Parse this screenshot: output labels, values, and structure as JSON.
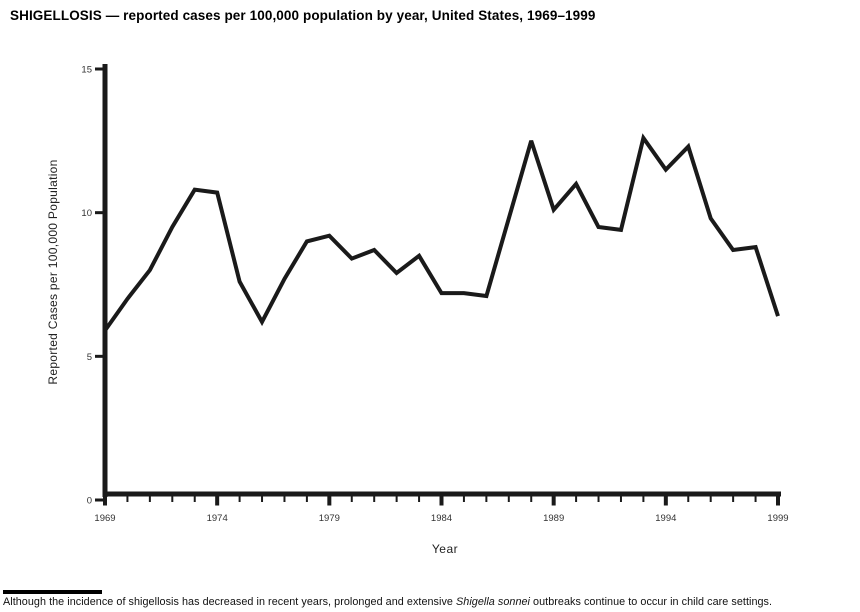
{
  "page": {
    "title": "SHIGELLOSIS — reported cases per 100,000 population by year, United States, 1969–1999"
  },
  "chart_data": {
    "type": "line",
    "title": "SHIGELLOSIS — reported cases per 100,000 population by year, United States, 1969–1999",
    "xlabel": "Year",
    "ylabel": "Reported Cases per 100,000 Population",
    "x": [
      1969,
      1970,
      1971,
      1972,
      1973,
      1974,
      1975,
      1976,
      1977,
      1978,
      1979,
      1980,
      1981,
      1982,
      1983,
      1984,
      1985,
      1986,
      1987,
      1988,
      1989,
      1990,
      1991,
      1992,
      1993,
      1994,
      1995,
      1996,
      1997,
      1998,
      1999
    ],
    "y": [
      5.9,
      7.0,
      8.0,
      9.5,
      10.8,
      10.7,
      7.6,
      6.2,
      7.7,
      9.0,
      9.2,
      8.4,
      8.7,
      7.9,
      8.5,
      7.2,
      7.2,
      7.1,
      9.8,
      12.5,
      10.1,
      11.0,
      9.5,
      9.4,
      12.6,
      11.5,
      12.3,
      9.8,
      8.7,
      8.8,
      6.4
    ],
    "ylim": [
      0,
      15
    ],
    "yticks": [
      0,
      5,
      10,
      15
    ],
    "xticks_labeled": [
      1969,
      1974,
      1979,
      1984,
      1989,
      1994,
      1999
    ],
    "grid": false,
    "legend_position": "none",
    "line_color": "#1a1a1a",
    "axis_color": "#1a1a1a",
    "tick_label_color": "#333333",
    "background": "#ffffff"
  },
  "footer": {
    "note_prefix": "Although the incidence of shigellosis has decreased in recent years, prolonged and extensive ",
    "note_italic": "Shigella sonnei",
    "note_suffix": " outbreaks continue to occur in child care settings."
  }
}
